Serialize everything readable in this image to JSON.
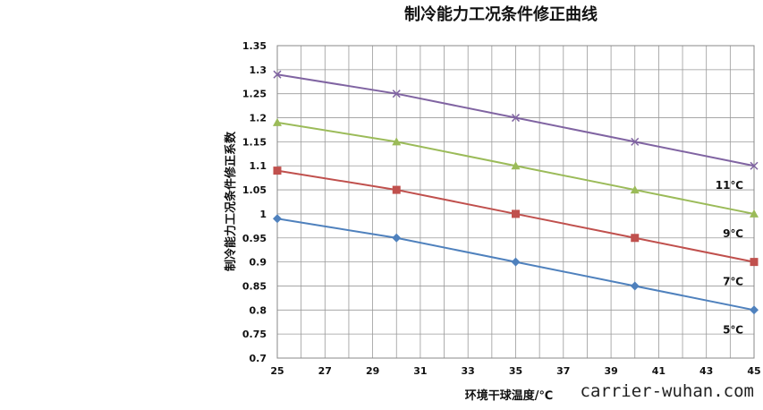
{
  "chart_data": {
    "type": "line",
    "title": "制冷能力工况条件修正曲线",
    "xlabel": "环境干球温度/℃",
    "ylabel": "制冷能力工况条件修正系数",
    "x": [
      25,
      30,
      35,
      40,
      45
    ],
    "xticks": [
      "25",
      "27",
      "29",
      "31",
      "33",
      "35",
      "37",
      "39",
      "41",
      "43",
      "45"
    ],
    "xlim": [
      25,
      45
    ],
    "yticks": [
      "0.7",
      "0.75",
      "0.8",
      "0.85",
      "0.9",
      "0.95",
      "1",
      "1.05",
      "1.1",
      "1.15",
      "1.2",
      "1.25",
      "1.3",
      "1.35"
    ],
    "ylim": [
      0.7,
      1.35
    ],
    "grid": true,
    "legend": "labels at line ends (right)",
    "series": [
      {
        "name": "5℃",
        "values": [
          0.99,
          0.95,
          0.9,
          0.85,
          0.8
        ],
        "color": "#4f81bd",
        "marker": "diamond"
      },
      {
        "name": "7℃",
        "values": [
          1.09,
          1.05,
          1.0,
          0.95,
          0.9
        ],
        "color": "#c0504d",
        "marker": "square"
      },
      {
        "name": "9℃",
        "values": [
          1.19,
          1.15,
          1.1,
          1.05,
          1.0
        ],
        "color": "#9bbb59",
        "marker": "triangle"
      },
      {
        "name": "11℃",
        "values": [
          1.29,
          1.25,
          1.2,
          1.15,
          1.1
        ],
        "color": "#8064a2",
        "marker": "x"
      }
    ]
  },
  "watermark": "carrier-wuhan.com"
}
